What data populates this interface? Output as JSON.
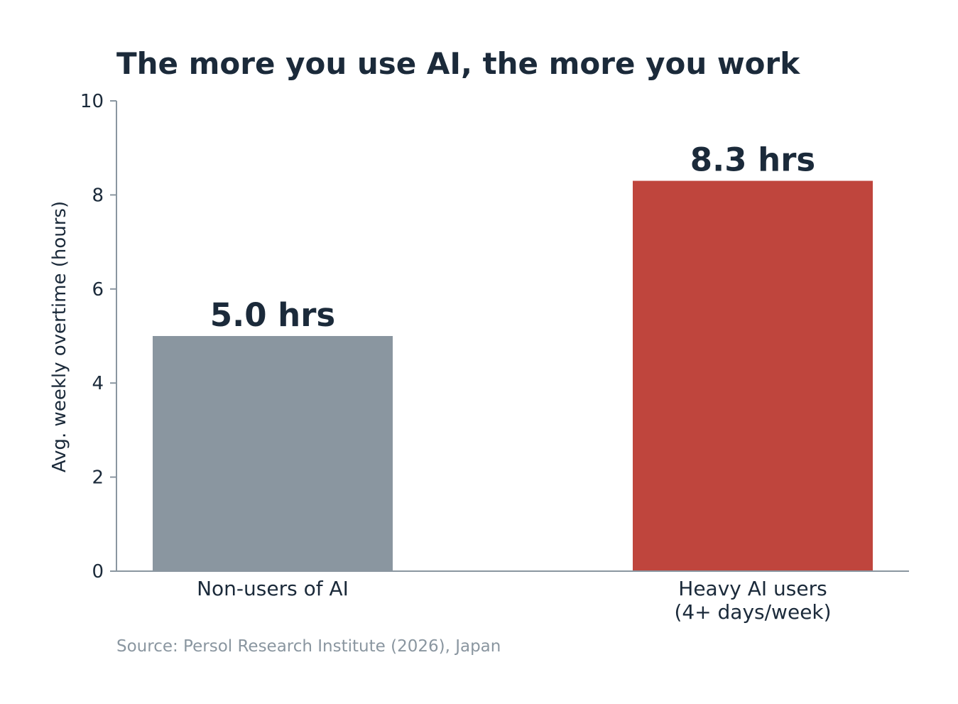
{
  "chart_data": {
    "type": "bar",
    "title": "The more you use AI, the more you work",
    "xlabel": "",
    "ylabel": "Avg. weekly overtime (hours)",
    "categories": [
      "Non-users of AI",
      "Heavy AI users\n(4+ days/week)"
    ],
    "values": [
      5.0,
      8.3
    ],
    "data_labels": [
      "5.0 hrs",
      "8.3 hrs"
    ],
    "ylim": [
      0,
      10
    ],
    "yticks": [
      0,
      2,
      4,
      6,
      8,
      10
    ],
    "bar_colors": [
      "#8a96a0",
      "#bf453d"
    ],
    "grid": false,
    "legend": "none",
    "source": "Source: Persol Research Institute (2026), Japan"
  },
  "colors": {
    "text": "#1b2a3a",
    "axis": "#8a96a0",
    "source": "#8a96a0"
  }
}
